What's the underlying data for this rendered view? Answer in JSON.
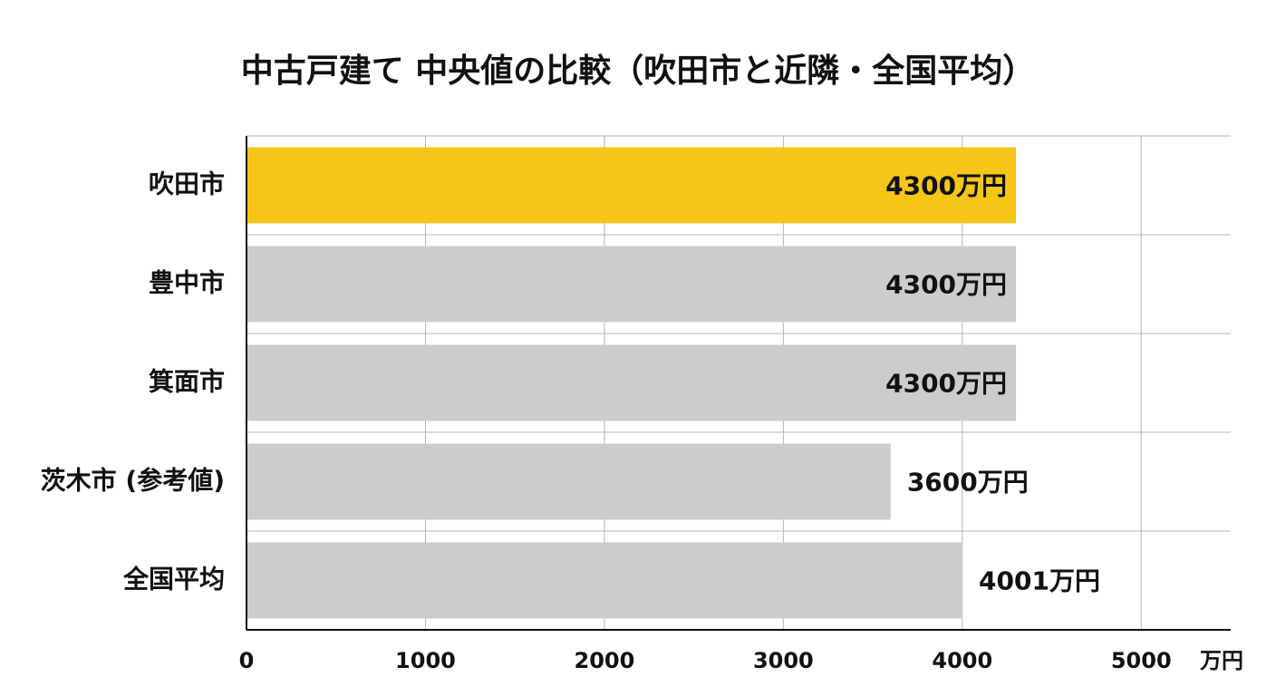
{
  "chart_data": {
    "type": "bar",
    "orientation": "horizontal",
    "title": "中古戸建て 中央値の比較（吹田市と近隣・全国平均）",
    "categories": [
      "吹田市",
      "豊中市",
      "箕面市",
      "茨木市 (参考値)",
      "全国平均"
    ],
    "values": [
      4300,
      4300,
      4300,
      3600,
      4001
    ],
    "value_labels": [
      "4300万円",
      "4300万円",
      "4300万円",
      "3600万円",
      "4001万円"
    ],
    "colors": [
      "#f5c518",
      "#cccccc",
      "#cccccc",
      "#cccccc",
      "#cccccc"
    ],
    "x_label": "万円",
    "xlim": [
      0,
      5500
    ],
    "xticks": [
      0,
      1000,
      2000,
      3000,
      4000,
      5000
    ],
    "grid": true
  }
}
